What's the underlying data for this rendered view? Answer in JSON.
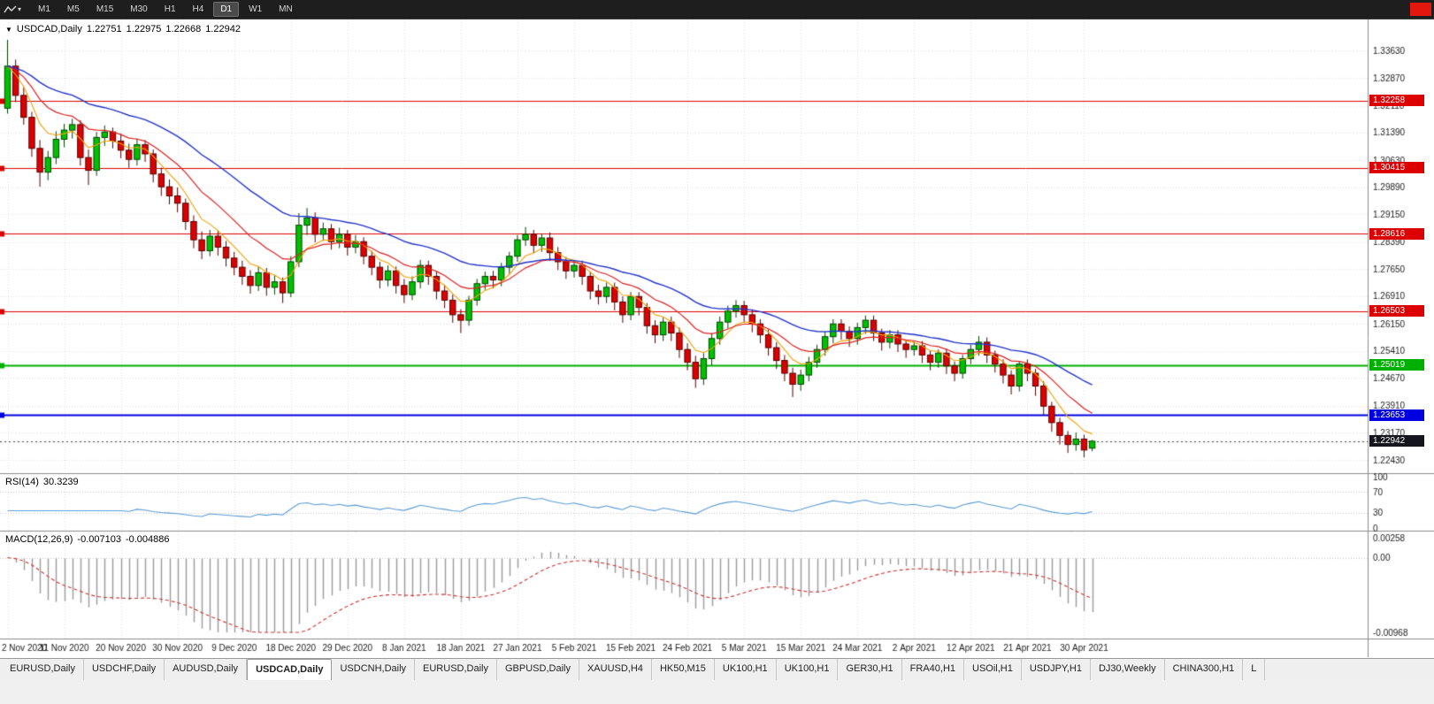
{
  "toolbar": {
    "timeframes": [
      "M1",
      "M5",
      "M15",
      "M30",
      "H1",
      "H4",
      "D1",
      "W1",
      "MN"
    ],
    "active_timeframe": "D1"
  },
  "chart_title": {
    "symbol": "USDCAD,Daily",
    "open": "1.22751",
    "high": "1.22975",
    "low": "1.22668",
    "close": "1.22942"
  },
  "price_axis": {
    "labels": [
      "1.33630",
      "1.32870",
      "1.32110",
      "1.31390",
      "1.30630",
      "1.29890",
      "1.29150",
      "1.28390",
      "1.27650",
      "1.26910",
      "1.26150",
      "1.25410",
      "1.24670",
      "1.23910",
      "1.23170",
      "1.22430"
    ]
  },
  "levels": [
    {
      "value": "1.32258",
      "color": "#dd0000",
      "line_width": 1
    },
    {
      "value": "1.30415",
      "color": "#dd0000",
      "line_width": 1
    },
    {
      "value": "1.28616",
      "color": "#dd0000",
      "line_width": 1
    },
    {
      "value": "1.26503",
      "color": "#dd0000",
      "line_width": 1
    },
    {
      "value": "1.25019",
      "color": "#00b000",
      "line_width": 2
    },
    {
      "value": "1.23653",
      "color": "#0000e0",
      "line_width": 2
    }
  ],
  "current_price": {
    "value": "1.22942",
    "color": "#15151d"
  },
  "rsi": {
    "name": "RSI(14)",
    "value": "30.3239",
    "period": 14,
    "axis_labels": [
      "100",
      "70",
      "30",
      "0"
    ],
    "level_lines": [
      70,
      30
    ]
  },
  "macd": {
    "name": "MACD(12,26,9)",
    "main_value": "-0.007103",
    "signal_value": "-0.004886",
    "fast": 12,
    "slow": 26,
    "signal": 9,
    "axis_labels": [
      "0.00258",
      "0.00",
      "-0.00968"
    ],
    "scale_max": 0.00258,
    "scale_min": -0.00968
  },
  "tabs": {
    "active_index": 3,
    "items": [
      "EURUSD,Daily",
      "USDCHF,Daily",
      "AUDUSD,Daily",
      "USDCAD,Daily",
      "USDCNH,Daily",
      "EURUSD,Daily",
      "GBPUSD,Daily",
      "XAUUSD,H4",
      "HK50,M15",
      "UK100,H1",
      "UK100,H1",
      "GER30,H1",
      "FRA40,H1",
      "USOil,H1",
      "USDJPY,H1",
      "DJ30,Weekly",
      "CHINA300,H1",
      "L"
    ]
  },
  "colors": {
    "bull": "#00c000",
    "bull_border": "#004400",
    "bear": "#dc0000",
    "bear_border": "#550000",
    "grid": "#e4e4e4",
    "separator": "#8c8c8c",
    "axis_text": "#1a1a1a",
    "rsi_line": "#5b9bd5",
    "macd_hist": "#9a9a9a",
    "macd_signal": "#d03030",
    "ma_fast": "#f0a000",
    "ma_mid": "#dd2222",
    "ma_slow": "#2233cc",
    "toolbar_red": "#e3170d"
  },
  "chart_data": {
    "type": "candlestick",
    "symbol": "USDCAD",
    "timeframe": "Daily",
    "title": "USDCAD,Daily 1.22751 1.22975 1.22668 1.22942",
    "price_range": [
      1.2209,
      1.3448
    ],
    "x_label_every": 7,
    "x_labels": [
      "2 Nov 2020",
      "11 Nov 2020",
      "20 Nov 2020",
      "30 Nov 2020",
      "9 Dec 2020",
      "18 Dec 2020",
      "29 Dec 2020",
      "8 Jan 2021",
      "18 Jan 2021",
      "27 Jan 2021",
      "5 Feb 2021",
      "15 Feb 2021",
      "24 Feb 2021",
      "5 Mar 2021",
      "15 Mar 2021",
      "24 Mar 2021",
      "2 Apr 2021",
      "12 Apr 2021",
      "21 Apr 2021",
      "30 Apr 2021"
    ],
    "horizontal_levels": [
      1.32258,
      1.30415,
      1.28616,
      1.26503,
      1.25019,
      1.23653
    ],
    "moving_averages": [
      {
        "name": "fast",
        "period": 6,
        "color": "#f0a000"
      },
      {
        "name": "mid",
        "period": 13,
        "color": "#dd2222"
      },
      {
        "name": "slow",
        "period": 30,
        "color": "#2233cc"
      }
    ],
    "candles": [
      [
        1.3205,
        1.3392,
        1.319,
        1.332
      ],
      [
        1.332,
        1.3338,
        1.3222,
        1.324
      ],
      [
        1.324,
        1.3262,
        1.316,
        1.318
      ],
      [
        1.318,
        1.3195,
        1.3072,
        1.3095
      ],
      [
        1.3095,
        1.3118,
        1.299,
        1.303
      ],
      [
        1.303,
        1.3088,
        1.3008,
        1.307
      ],
      [
        1.307,
        1.3142,
        1.3052,
        1.312
      ],
      [
        1.312,
        1.3162,
        1.3098,
        1.3145
      ],
      [
        1.3145,
        1.3176,
        1.3122,
        1.316
      ],
      [
        1.316,
        1.3172,
        1.3048,
        1.307
      ],
      [
        1.307,
        1.3092,
        1.2995,
        1.3035
      ],
      [
        1.3035,
        1.314,
        1.302,
        1.3125
      ],
      [
        1.3125,
        1.3158,
        1.3102,
        1.314
      ],
      [
        1.314,
        1.3152,
        1.3095,
        1.3115
      ],
      [
        1.3115,
        1.3135,
        1.3068,
        1.309
      ],
      [
        1.309,
        1.3108,
        1.3042,
        1.3065
      ],
      [
        1.3065,
        1.3122,
        1.3048,
        1.3105
      ],
      [
        1.3105,
        1.3118,
        1.3058,
        1.308
      ],
      [
        1.308,
        1.3092,
        1.3002,
        1.3025
      ],
      [
        1.3025,
        1.3042,
        1.2965,
        1.299
      ],
      [
        1.299,
        1.301,
        1.2942,
        1.2965
      ],
      [
        1.2965,
        1.2988,
        1.292,
        1.2945
      ],
      [
        1.2945,
        1.2958,
        1.2872,
        1.2895
      ],
      [
        1.2895,
        1.2912,
        1.2822,
        1.2845
      ],
      [
        1.2845,
        1.2868,
        1.2792,
        1.2815
      ],
      [
        1.2815,
        1.2872,
        1.28,
        1.2855
      ],
      [
        1.2855,
        1.287,
        1.2802,
        1.2825
      ],
      [
        1.2825,
        1.2842,
        1.2772,
        1.2795
      ],
      [
        1.2795,
        1.2812,
        1.2748,
        1.277
      ],
      [
        1.277,
        1.2788,
        1.2722,
        1.2745
      ],
      [
        1.2745,
        1.2762,
        1.2698,
        1.272
      ],
      [
        1.272,
        1.2772,
        1.2705,
        1.2755
      ],
      [
        1.2755,
        1.2768,
        1.2692,
        1.2715
      ],
      [
        1.2715,
        1.2748,
        1.2695,
        1.273
      ],
      [
        1.273,
        1.2742,
        1.2672,
        1.27
      ],
      [
        1.27,
        1.28,
        1.2688,
        1.2785
      ],
      [
        1.2785,
        1.2918,
        1.277,
        1.2885
      ],
      [
        1.2885,
        1.2932,
        1.2858,
        1.2905
      ],
      [
        1.2905,
        1.292,
        1.2838,
        1.286
      ],
      [
        1.286,
        1.2892,
        1.2842,
        1.2875
      ],
      [
        1.2875,
        1.2888,
        1.2818,
        1.284
      ],
      [
        1.284,
        1.2878,
        1.2822,
        1.286
      ],
      [
        1.286,
        1.2872,
        1.2802,
        1.2825
      ],
      [
        1.2825,
        1.2858,
        1.2808,
        1.284
      ],
      [
        1.284,
        1.2852,
        1.2778,
        1.28
      ],
      [
        1.28,
        1.2815,
        1.2748,
        1.277
      ],
      [
        1.277,
        1.2785,
        1.2712,
        1.2735
      ],
      [
        1.2735,
        1.2775,
        1.2718,
        1.276
      ],
      [
        1.276,
        1.2772,
        1.2698,
        1.272
      ],
      [
        1.272,
        1.2738,
        1.2672,
        1.2695
      ],
      [
        1.2695,
        1.2745,
        1.268,
        1.273
      ],
      [
        1.273,
        1.279,
        1.2712,
        1.2775
      ],
      [
        1.2775,
        1.2788,
        1.2722,
        1.2745
      ],
      [
        1.2745,
        1.2758,
        1.2682,
        1.2705
      ],
      [
        1.2705,
        1.2722,
        1.2658,
        1.268
      ],
      [
        1.268,
        1.2695,
        1.2618,
        1.264
      ],
      [
        1.264,
        1.2655,
        1.259,
        1.2625
      ],
      [
        1.2625,
        1.2692,
        1.261,
        1.268
      ],
      [
        1.268,
        1.2738,
        1.2665,
        1.2725
      ],
      [
        1.2725,
        1.2758,
        1.2708,
        1.2745
      ],
      [
        1.2745,
        1.276,
        1.2712,
        1.2735
      ],
      [
        1.2735,
        1.2782,
        1.2718,
        1.277
      ],
      [
        1.277,
        1.2812,
        1.2752,
        1.28
      ],
      [
        1.28,
        1.2858,
        1.2785,
        1.2845
      ],
      [
        1.2845,
        1.288,
        1.2828,
        1.286
      ],
      [
        1.286,
        1.2872,
        1.2808,
        1.283
      ],
      [
        1.283,
        1.2862,
        1.2812,
        1.285
      ],
      [
        1.285,
        1.2865,
        1.2788,
        1.281
      ],
      [
        1.281,
        1.2825,
        1.2762,
        1.2785
      ],
      [
        1.2785,
        1.2798,
        1.2738,
        1.276
      ],
      [
        1.276,
        1.2788,
        1.2742,
        1.2775
      ],
      [
        1.2775,
        1.2788,
        1.2722,
        1.2745
      ],
      [
        1.2745,
        1.2758,
        1.2682,
        1.2705
      ],
      [
        1.2705,
        1.2722,
        1.2668,
        1.269
      ],
      [
        1.269,
        1.2728,
        1.2672,
        1.2715
      ],
      [
        1.2715,
        1.2728,
        1.2652,
        1.2675
      ],
      [
        1.2675,
        1.269,
        1.2618,
        1.264
      ],
      [
        1.264,
        1.2702,
        1.2625,
        1.269
      ],
      [
        1.269,
        1.2702,
        1.2638,
        1.266
      ],
      [
        1.266,
        1.2672,
        1.2588,
        1.261
      ],
      [
        1.261,
        1.2625,
        1.2562,
        1.2585
      ],
      [
        1.2585,
        1.2632,
        1.2568,
        1.262
      ],
      [
        1.262,
        1.2635,
        1.2568,
        1.259
      ],
      [
        1.259,
        1.2605,
        1.2522,
        1.2545
      ],
      [
        1.2545,
        1.2562,
        1.2488,
        1.251
      ],
      [
        1.251,
        1.2528,
        1.244,
        1.2465
      ],
      [
        1.2465,
        1.2535,
        1.2448,
        1.252
      ],
      [
        1.252,
        1.259,
        1.2502,
        1.2575
      ],
      [
        1.2575,
        1.2635,
        1.2558,
        1.262
      ],
      [
        1.262,
        1.2665,
        1.2602,
        1.265
      ],
      [
        1.265,
        1.268,
        1.2632,
        1.2665
      ],
      [
        1.2665,
        1.2678,
        1.2618,
        1.264
      ],
      [
        1.264,
        1.2655,
        1.2592,
        1.2615
      ],
      [
        1.2615,
        1.2628,
        1.2562,
        1.2585
      ],
      [
        1.2585,
        1.26,
        1.2528,
        1.255
      ],
      [
        1.255,
        1.2565,
        1.2492,
        1.2515
      ],
      [
        1.2515,
        1.253,
        1.2458,
        1.248
      ],
      [
        1.248,
        1.2495,
        1.2415,
        1.245
      ],
      [
        1.245,
        1.249,
        1.2432,
        1.2475
      ],
      [
        1.2475,
        1.2525,
        1.2458,
        1.251
      ],
      [
        1.251,
        1.2558,
        1.2495,
        1.2545
      ],
      [
        1.2545,
        1.2595,
        1.2528,
        1.258
      ],
      [
        1.258,
        1.2628,
        1.2562,
        1.2615
      ],
      [
        1.2615,
        1.2628,
        1.2572,
        1.2595
      ],
      [
        1.2595,
        1.2608,
        1.2552,
        1.2575
      ],
      [
        1.2575,
        1.2618,
        1.2558,
        1.2605
      ],
      [
        1.2605,
        1.2638,
        1.2588,
        1.2625
      ],
      [
        1.2625,
        1.2638,
        1.2568,
        1.259
      ],
      [
        1.259,
        1.2602,
        1.2542,
        1.2565
      ],
      [
        1.2565,
        1.2598,
        1.2548,
        1.2585
      ],
      [
        1.2585,
        1.2598,
        1.2538,
        1.256
      ],
      [
        1.256,
        1.2572,
        1.2522,
        1.2545
      ],
      [
        1.2545,
        1.2568,
        1.2528,
        1.2555
      ],
      [
        1.2555,
        1.2568,
        1.2508,
        1.253
      ],
      [
        1.253,
        1.2542,
        1.2488,
        1.251
      ],
      [
        1.251,
        1.2545,
        1.2495,
        1.2535
      ],
      [
        1.2535,
        1.2548,
        1.2478,
        1.25
      ],
      [
        1.25,
        1.2512,
        1.2458,
        1.248
      ],
      [
        1.248,
        1.253,
        1.2465,
        1.252
      ],
      [
        1.252,
        1.2558,
        1.2505,
        1.2545
      ],
      [
        1.2545,
        1.2582,
        1.2528,
        1.2565
      ],
      [
        1.2565,
        1.2578,
        1.2508,
        1.253
      ],
      [
        1.253,
        1.2542,
        1.2482,
        1.2505
      ],
      [
        1.2505,
        1.2518,
        1.2452,
        1.2475
      ],
      [
        1.2475,
        1.2488,
        1.2422,
        1.2445
      ],
      [
        1.2445,
        1.2512,
        1.243,
        1.2505
      ],
      [
        1.2505,
        1.2518,
        1.2458,
        1.248
      ],
      [
        1.248,
        1.2492,
        1.2418,
        1.2445
      ],
      [
        1.2445,
        1.2458,
        1.2365,
        1.239
      ],
      [
        1.239,
        1.2402,
        1.232,
        1.2345
      ],
      [
        1.2345,
        1.2358,
        1.2285,
        1.231
      ],
      [
        1.231,
        1.2322,
        1.2262,
        1.2285
      ],
      [
        1.2285,
        1.2318,
        1.2268,
        1.23
      ],
      [
        1.23,
        1.2312,
        1.225,
        1.227
      ],
      [
        1.22751,
        1.22975,
        1.22668,
        1.22942
      ]
    ]
  }
}
